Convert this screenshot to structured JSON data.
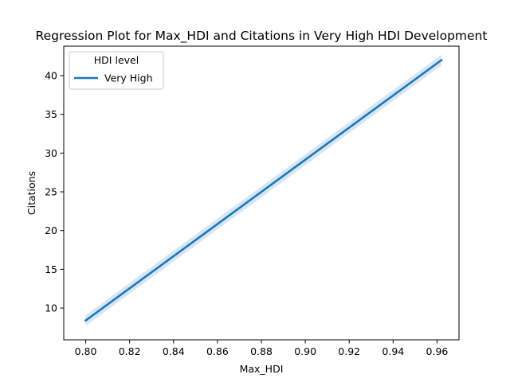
{
  "chart_data": {
    "type": "line",
    "title": "Regression Plot for Max_HDI and Citations in Very High HDI Development",
    "xlabel": "Max_HDI",
    "ylabel": "Citations",
    "xlim": [
      0.79,
      0.97
    ],
    "ylim": [
      5.9,
      43.8
    ],
    "xticks": [
      0.8,
      0.82,
      0.84,
      0.86,
      0.88,
      0.9,
      0.92,
      0.94,
      0.96
    ],
    "xtick_labels": [
      "0.80",
      "0.82",
      "0.84",
      "0.86",
      "0.88",
      "0.90",
      "0.92",
      "0.94",
      "0.96"
    ],
    "yticks": [
      10,
      15,
      20,
      25,
      30,
      35,
      40
    ],
    "ytick_labels": [
      "10",
      "15",
      "20",
      "25",
      "30",
      "35",
      "40"
    ],
    "grid": false,
    "legend": {
      "title": "HDI level",
      "placement": "top-left"
    },
    "series": [
      {
        "name": "Very High",
        "color": "#1f77b4",
        "band_color": "#c6dbef",
        "x": [
          0.8,
          0.962
        ],
        "y": [
          8.4,
          42.0
        ],
        "ci_lower": [
          7.7,
          41.3
        ],
        "ci_upper": [
          9.1,
          42.7
        ]
      }
    ]
  }
}
